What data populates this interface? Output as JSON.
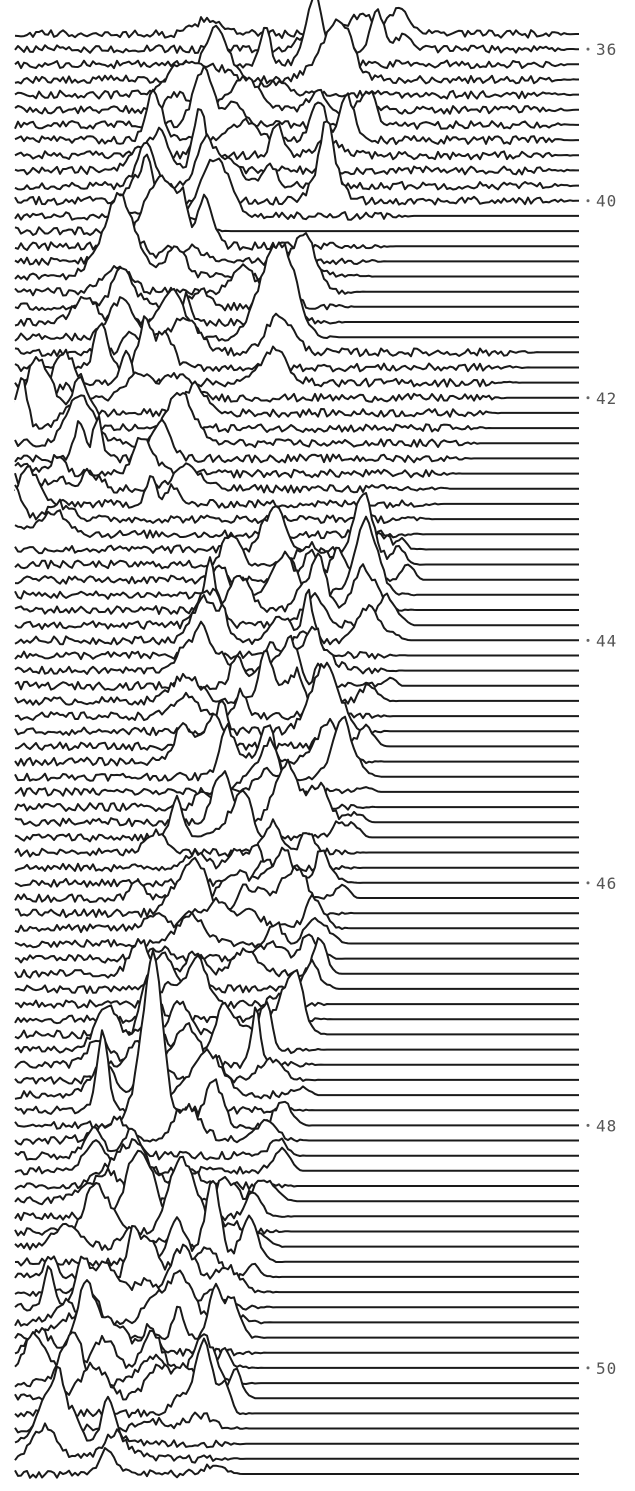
{
  "chart_data": {
    "type": "line",
    "title": "",
    "xlabel": "",
    "ylabel": "",
    "y_tick_labels": [
      "36",
      "40",
      "42",
      "44",
      "46",
      "48",
      "50"
    ],
    "y_tick_trace_index": [
      1,
      11,
      24,
      40,
      56,
      72,
      88
    ],
    "trace_count": 96,
    "grid": false,
    "legend": "none",
    "description_shape": "stacked ridgeline traces, flat tails to the right, dense peaks shifting from right (top) to left (bottom)",
    "colors": {
      "trace": "#1a1a1a",
      "background": "#ffffff",
      "tick_label": "#555555"
    }
  }
}
